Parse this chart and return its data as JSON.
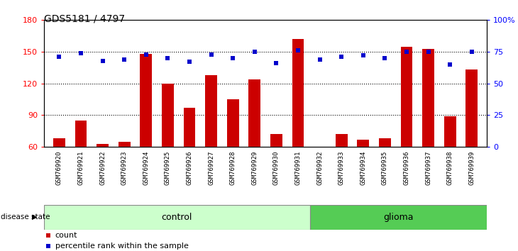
{
  "title": "GDS5181 / 4797",
  "samples": [
    "GSM769920",
    "GSM769921",
    "GSM769922",
    "GSM769923",
    "GSM769924",
    "GSM769925",
    "GSM769926",
    "GSM769927",
    "GSM769928",
    "GSM769929",
    "GSM769930",
    "GSM769931",
    "GSM769932",
    "GSM769933",
    "GSM769934",
    "GSM769935",
    "GSM769936",
    "GSM769937",
    "GSM769938",
    "GSM769939"
  ],
  "counts": [
    68,
    85,
    63,
    65,
    148,
    120,
    97,
    128,
    105,
    124,
    72,
    162,
    60,
    72,
    67,
    68,
    155,
    153,
    89,
    133
  ],
  "percentiles": [
    71,
    74,
    68,
    69,
    73,
    70,
    67,
    73,
    70,
    75,
    66,
    76,
    69,
    71,
    72,
    70,
    75,
    75,
    65,
    75
  ],
  "control_count": 12,
  "glioma_count": 8,
  "ylim_left": [
    60,
    180
  ],
  "ylim_right": [
    0,
    100
  ],
  "yticks_left": [
    60,
    90,
    120,
    150,
    180
  ],
  "yticks_right": [
    0,
    25,
    50,
    75,
    100
  ],
  "bar_color": "#cc0000",
  "dot_color": "#0000cc",
  "control_color": "#ccffcc",
  "glioma_color": "#55cc55",
  "bg_color": "#c8c8c8",
  "label_count": "count",
  "label_pct": "percentile rank within the sample",
  "disease_state_label": "disease state",
  "control_label": "control",
  "glioma_label": "glioma"
}
